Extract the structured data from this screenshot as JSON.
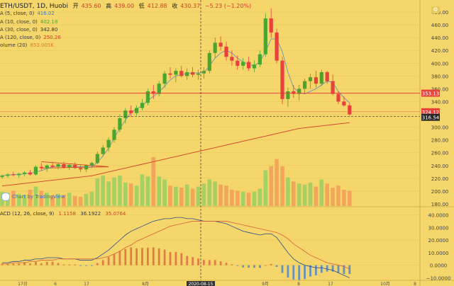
{
  "header": {
    "symbol": "ETH/USDT, 1D, Huobi",
    "open_label": "开",
    "open": "435.60",
    "high_label": "高",
    "high": "439.00",
    "low_label": "低",
    "low": "412.88",
    "close_label": "收",
    "close": "430.37",
    "change": "−5.23 (−1.20%)"
  },
  "legend": [
    {
      "label": "A (5, close, 0)",
      "value": "416.02",
      "color": "#3a7bd5"
    },
    {
      "label": "A (10, close, 0)",
      "value": "402.18",
      "color": "#4aa52e"
    },
    {
      "label": "A (30, close, 0)",
      "value": "342.80",
      "color": "#333333"
    },
    {
      "label": "A (120, close, 0)",
      "value": "250.26",
      "color": "#d0402b"
    },
    {
      "label": "olume (20)",
      "value": "853.005K",
      "color": "#e07a2b"
    }
  ],
  "watermark": "Chart by TradingView",
  "macd_legend": {
    "label": "ACD (12, 26, close, 9)",
    "v1": "1.1158",
    "v2": "36.1922",
    "v3": "35.0764"
  },
  "price_axis_labels": [
    "480.00",
    "460.00",
    "440.00",
    "420.00",
    "400.00",
    "380.00",
    "360.00",
    "340.00",
    "300.00",
    "280.00",
    "260.00",
    "240.00",
    "220.00",
    "200.00",
    "180.00"
  ],
  "macd_axis_labels": [
    "40.0000",
    "30.0000",
    "20.0000",
    "10.0000",
    "0.0000",
    "−10.0000"
  ],
  "price_tags": [
    {
      "value": "353.13",
      "bg": "#e8413b"
    },
    {
      "value": "324.12",
      "bg": "#e8413b"
    },
    {
      "value": "316.54",
      "bg": "#262626"
    }
  ],
  "x_labels": [
    "17日",
    "6",
    "17",
    "8月",
    "2020-08-15",
    "9月",
    "8",
    "17",
    "10月",
    "8"
  ],
  "colors": {
    "bg": "#f4d66a",
    "up": "#4aa52e",
    "down": "#e8413b",
    "ma5": "#3a7bd5",
    "ma120": "#d0402b"
  },
  "chart_data": {
    "type": "candlestick",
    "series": [
      {
        "values": [
          [
            222,
            226,
            219,
            224
          ],
          [
            224,
            228,
            221,
            226
          ],
          [
            226,
            230,
            223,
            225
          ],
          [
            225,
            229,
            221,
            227
          ],
          [
            227,
            231,
            223,
            229
          ],
          [
            229,
            233,
            224,
            226
          ],
          [
            226,
            240,
            224,
            238
          ],
          [
            238,
            244,
            232,
            236
          ],
          [
            236,
            242,
            230,
            240
          ],
          [
            240,
            246,
            236,
            238
          ],
          [
            238,
            244,
            234,
            242
          ],
          [
            242,
            246,
            235,
            237
          ],
          [
            237,
            243,
            233,
            241
          ],
          [
            241,
            245,
            235,
            236
          ],
          [
            236,
            240,
            230,
            234
          ],
          [
            234,
            242,
            230,
            240
          ],
          [
            240,
            246,
            236,
            244
          ],
          [
            244,
            262,
            242,
            258
          ],
          [
            258,
            272,
            254,
            268
          ],
          [
            268,
            284,
            262,
            280
          ],
          [
            280,
            300,
            276,
            296
          ],
          [
            296,
            320,
            292,
            314
          ],
          [
            314,
            330,
            306,
            326
          ],
          [
            326,
            334,
            316,
            322
          ],
          [
            322,
            334,
            318,
            330
          ],
          [
            330,
            344,
            326,
            338
          ],
          [
            338,
            360,
            334,
            356
          ],
          [
            356,
            366,
            344,
            352
          ],
          [
            352,
            372,
            348,
            368
          ],
          [
            368,
            388,
            362,
            384
          ],
          [
            384,
            394,
            376,
            382
          ],
          [
            382,
            392,
            370,
            388
          ],
          [
            388,
            396,
            378,
            380
          ],
          [
            380,
            392,
            374,
            386
          ],
          [
            386,
            394,
            378,
            382
          ],
          [
            382,
            390,
            374,
            384
          ],
          [
            384,
            394,
            376,
            388
          ],
          [
            388,
            420,
            384,
            416
          ],
          [
            416,
            440,
            408,
            432
          ],
          [
            432,
            442,
            420,
            426
          ],
          [
            426,
            434,
            404,
            410
          ],
          [
            410,
            420,
            396,
            404
          ],
          [
            404,
            412,
            390,
            396
          ],
          [
            396,
            408,
            390,
            402
          ],
          [
            402,
            410,
            388,
            392
          ],
          [
            392,
            404,
            386,
            398
          ],
          [
            398,
            420,
            394,
            414
          ],
          [
            414,
            478,
            410,
            470
          ],
          [
            470,
            486,
            440,
            448
          ],
          [
            448,
            454,
            400,
            404
          ],
          [
            404,
            410,
            336,
            344
          ],
          [
            344,
            362,
            332,
            356
          ],
          [
            356,
            366,
            346,
            352
          ],
          [
            352,
            366,
            342,
            360
          ],
          [
            360,
            376,
            354,
            372
          ],
          [
            372,
            384,
            360,
            378
          ],
          [
            378,
            388,
            362,
            368
          ],
          [
            368,
            390,
            364,
            386
          ],
          [
            386,
            388,
            368,
            372
          ],
          [
            372,
            382,
            350,
            352
          ],
          [
            352,
            356,
            336,
            340
          ],
          [
            340,
            348,
            332,
            334
          ],
          [
            334,
            338,
            318,
            320
          ]
        ]
      },
      {
        "name": "MA5",
        "values": [
          224,
          225,
          226,
          226,
          227,
          228,
          230,
          232,
          235,
          238,
          239,
          240,
          239,
          239,
          238,
          238,
          238,
          245,
          255,
          267,
          283,
          298,
          311,
          323,
          329,
          333,
          342,
          348,
          355,
          364,
          374,
          380,
          382,
          384,
          385,
          385,
          385,
          396,
          408,
          416,
          420,
          416,
          408,
          402,
          398,
          396,
          402,
          418,
          438,
          438,
          418,
          386,
          362,
          354,
          352,
          356,
          360,
          366,
          372,
          370,
          356,
          346,
          338
        ]
      },
      {
        "name": "MA120",
        "values": [
          208,
          209,
          210,
          211,
          212,
          213,
          214,
          215,
          216,
          217,
          218,
          219,
          220,
          221,
          222,
          223,
          224,
          226,
          228,
          230,
          232,
          234,
          236,
          238,
          240,
          242,
          244,
          246,
          248,
          250,
          252,
          254,
          256,
          258,
          260,
          262,
          264,
          266,
          268,
          270,
          272,
          274,
          276,
          278,
          280,
          282,
          284,
          286,
          288,
          290,
          292,
          294,
          296,
          298,
          299,
          300,
          301,
          302,
          303,
          304,
          305,
          306,
          307
        ]
      },
      {
        "name": "Volume",
        "values": [
          28,
          26,
          30,
          24,
          22,
          32,
          38,
          30,
          26,
          20,
          24,
          22,
          26,
          20,
          18,
          24,
          28,
          54,
          60,
          48,
          56,
          60,
          46,
          44,
          40,
          62,
          58,
          96,
          58,
          52,
          40,
          38,
          36,
          42,
          34,
          38,
          44,
          52,
          48,
          42,
          40,
          32,
          30,
          28,
          26,
          28,
          34,
          70,
          78,
          92,
          78,
          56,
          48,
          44,
          42,
          46,
          38,
          52,
          44,
          36,
          40,
          32,
          30
        ]
      },
      {
        "name": "MACD",
        "values": [
          2,
          2,
          3,
          3,
          4,
          4,
          5,
          5,
          6,
          6,
          6,
          5,
          5,
          5,
          4,
          4,
          4,
          6,
          9,
          12,
          16,
          20,
          24,
          27,
          29,
          31,
          33,
          35,
          36,
          37,
          37,
          38,
          38,
          37,
          37,
          36,
          35,
          35,
          35,
          34,
          33,
          31,
          29,
          27,
          26,
          25,
          24,
          25,
          25,
          22,
          16,
          10,
          5,
          2,
          0,
          -1,
          -2,
          -2,
          -3,
          -4,
          -6,
          -8,
          -10
        ]
      },
      {
        "name": "Signal",
        "values": [
          1,
          1,
          2,
          2,
          2,
          3,
          3,
          4,
          4,
          4,
          5,
          5,
          5,
          5,
          5,
          5,
          5,
          5,
          6,
          7,
          9,
          11,
          14,
          16,
          19,
          21,
          23,
          25,
          27,
          29,
          31,
          32,
          33,
          34,
          35,
          35,
          35,
          35,
          35,
          35,
          35,
          34,
          33,
          32,
          31,
          30,
          29,
          28,
          27,
          26,
          24,
          21,
          17,
          14,
          11,
          8,
          6,
          4,
          2,
          1,
          0,
          -1,
          -3
        ]
      }
    ],
    "ylim": [
      180,
      490
    ],
    "macd_ylim": [
      -12,
      42
    ],
    "hlines": [
      353.13,
      324.12,
      316.54
    ],
    "crosshair_x": "2020-08-15"
  }
}
